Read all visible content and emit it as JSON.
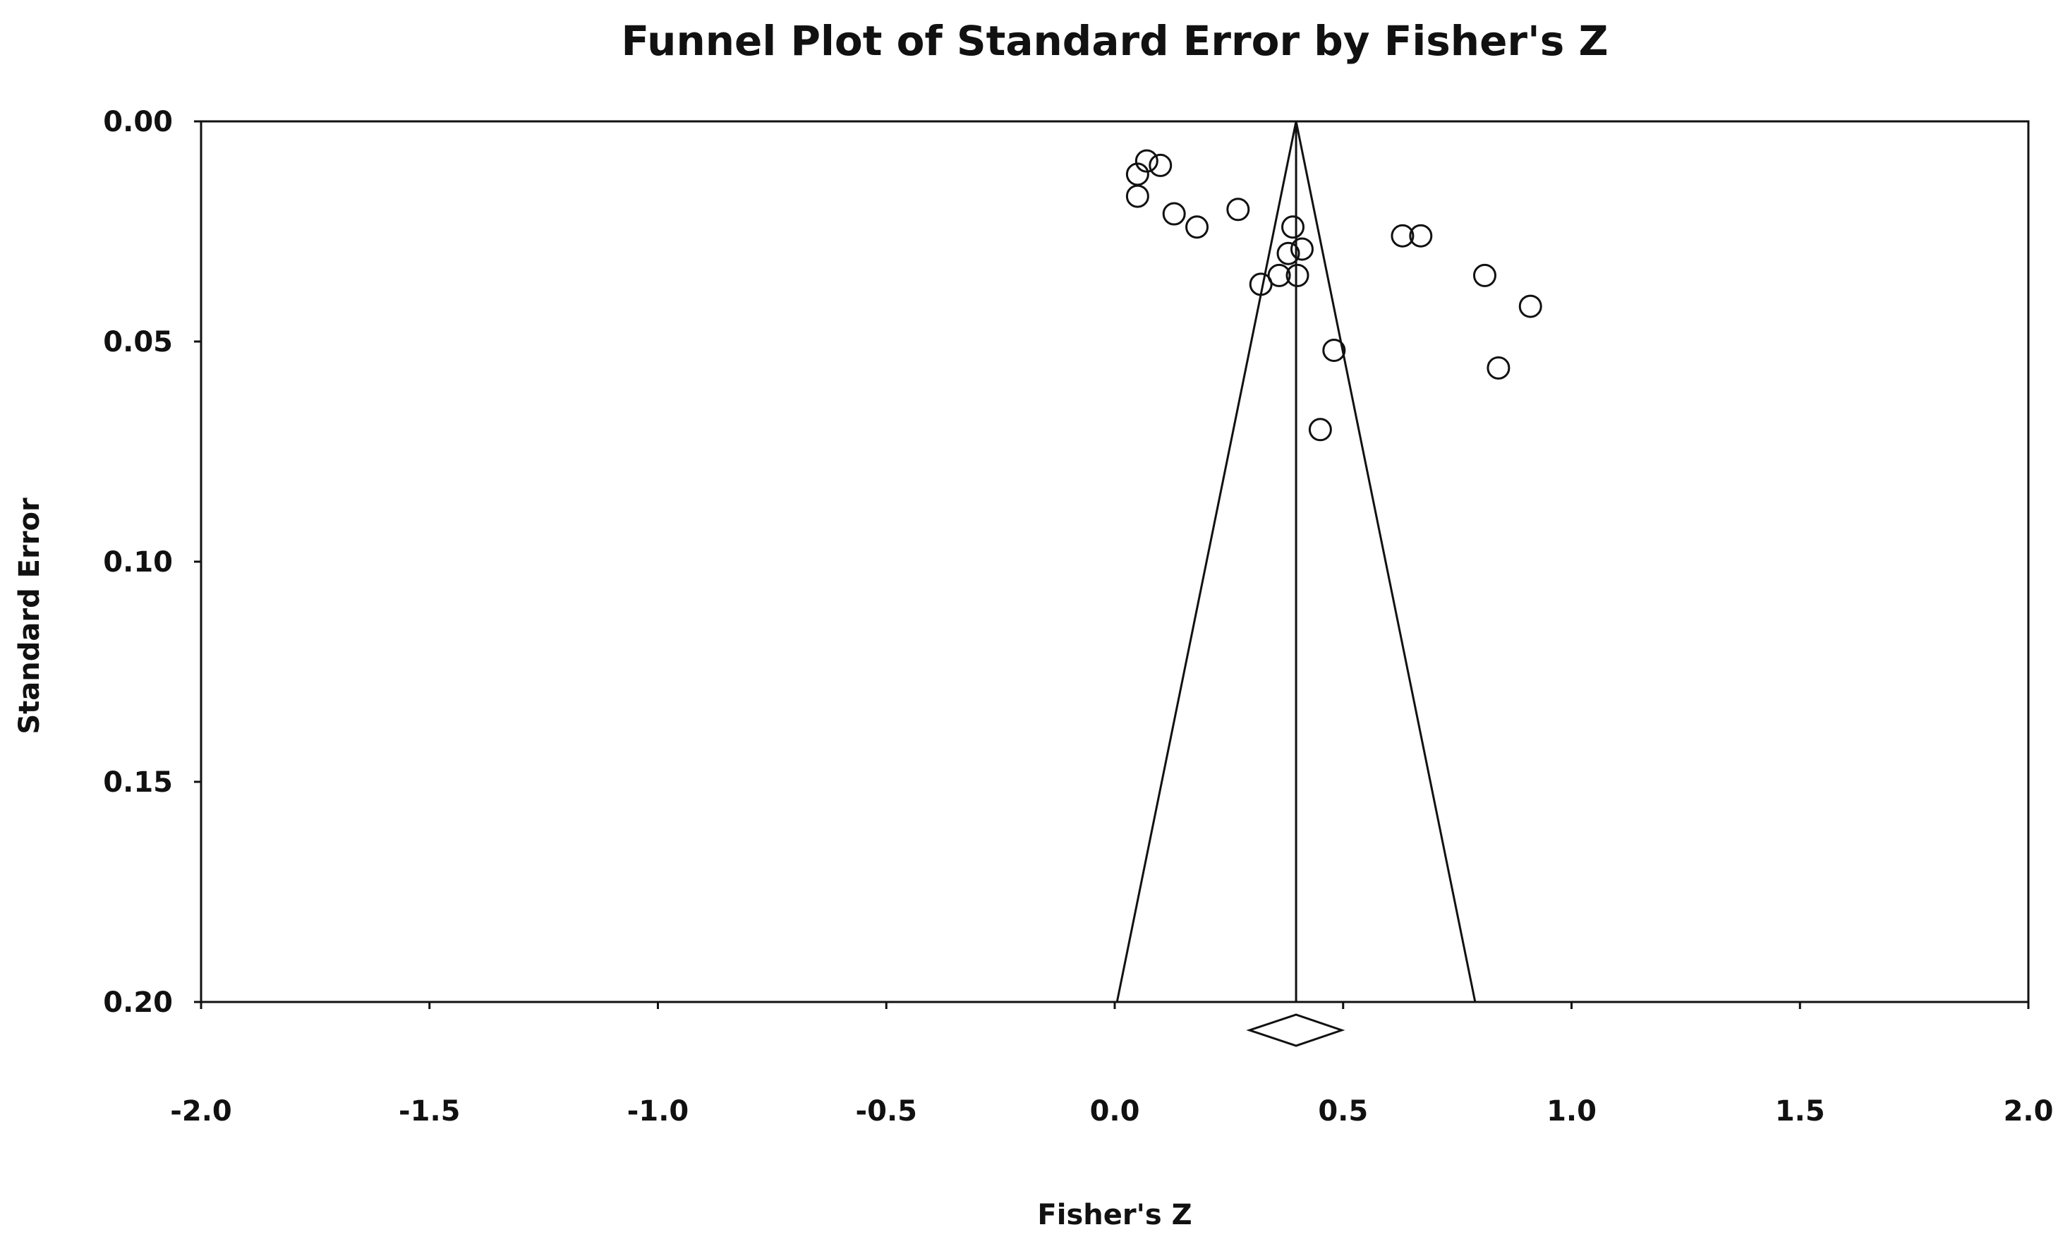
{
  "chart_data": {
    "type": "scatter",
    "title": "Funnel Plot of Standard Error by Fisher's Z",
    "xlabel": "Fisher's Z",
    "ylabel": "Standard Error",
    "xlim": [
      -2.0,
      2.0
    ],
    "ylim": [
      0.0,
      0.2
    ],
    "y_inverted": true,
    "x_ticks": [
      "-2.0",
      "-1.5",
      "-1.0",
      "-0.5",
      "0.0",
      "0.5",
      "1.0",
      "1.5",
      "2.0"
    ],
    "y_ticks": [
      "0.00",
      "0.05",
      "0.10",
      "0.15",
      "0.20"
    ],
    "grid": false,
    "pooled_estimate": 0.397,
    "funnel": {
      "center": 0.397,
      "se_max": 0.2,
      "left_at_base": 0.005,
      "right_at_base": 0.789
    },
    "summary_diamond": {
      "center": 0.397,
      "lower": 0.295,
      "upper": 0.497
    },
    "points": [
      {
        "x": 0.07,
        "y": 0.009
      },
      {
        "x": 0.1,
        "y": 0.01
      },
      {
        "x": 0.05,
        "y": 0.012
      },
      {
        "x": 0.05,
        "y": 0.017
      },
      {
        "x": 0.13,
        "y": 0.021
      },
      {
        "x": 0.18,
        "y": 0.024
      },
      {
        "x": 0.27,
        "y": 0.02
      },
      {
        "x": 0.39,
        "y": 0.024
      },
      {
        "x": 0.41,
        "y": 0.029
      },
      {
        "x": 0.38,
        "y": 0.03
      },
      {
        "x": 0.36,
        "y": 0.035
      },
      {
        "x": 0.32,
        "y": 0.037
      },
      {
        "x": 0.4,
        "y": 0.035
      },
      {
        "x": 0.63,
        "y": 0.026
      },
      {
        "x": 0.67,
        "y": 0.026
      },
      {
        "x": 0.81,
        "y": 0.035
      },
      {
        "x": 0.91,
        "y": 0.042
      },
      {
        "x": 0.48,
        "y": 0.052
      },
      {
        "x": 0.84,
        "y": 0.056
      },
      {
        "x": 0.45,
        "y": 0.07
      }
    ]
  }
}
